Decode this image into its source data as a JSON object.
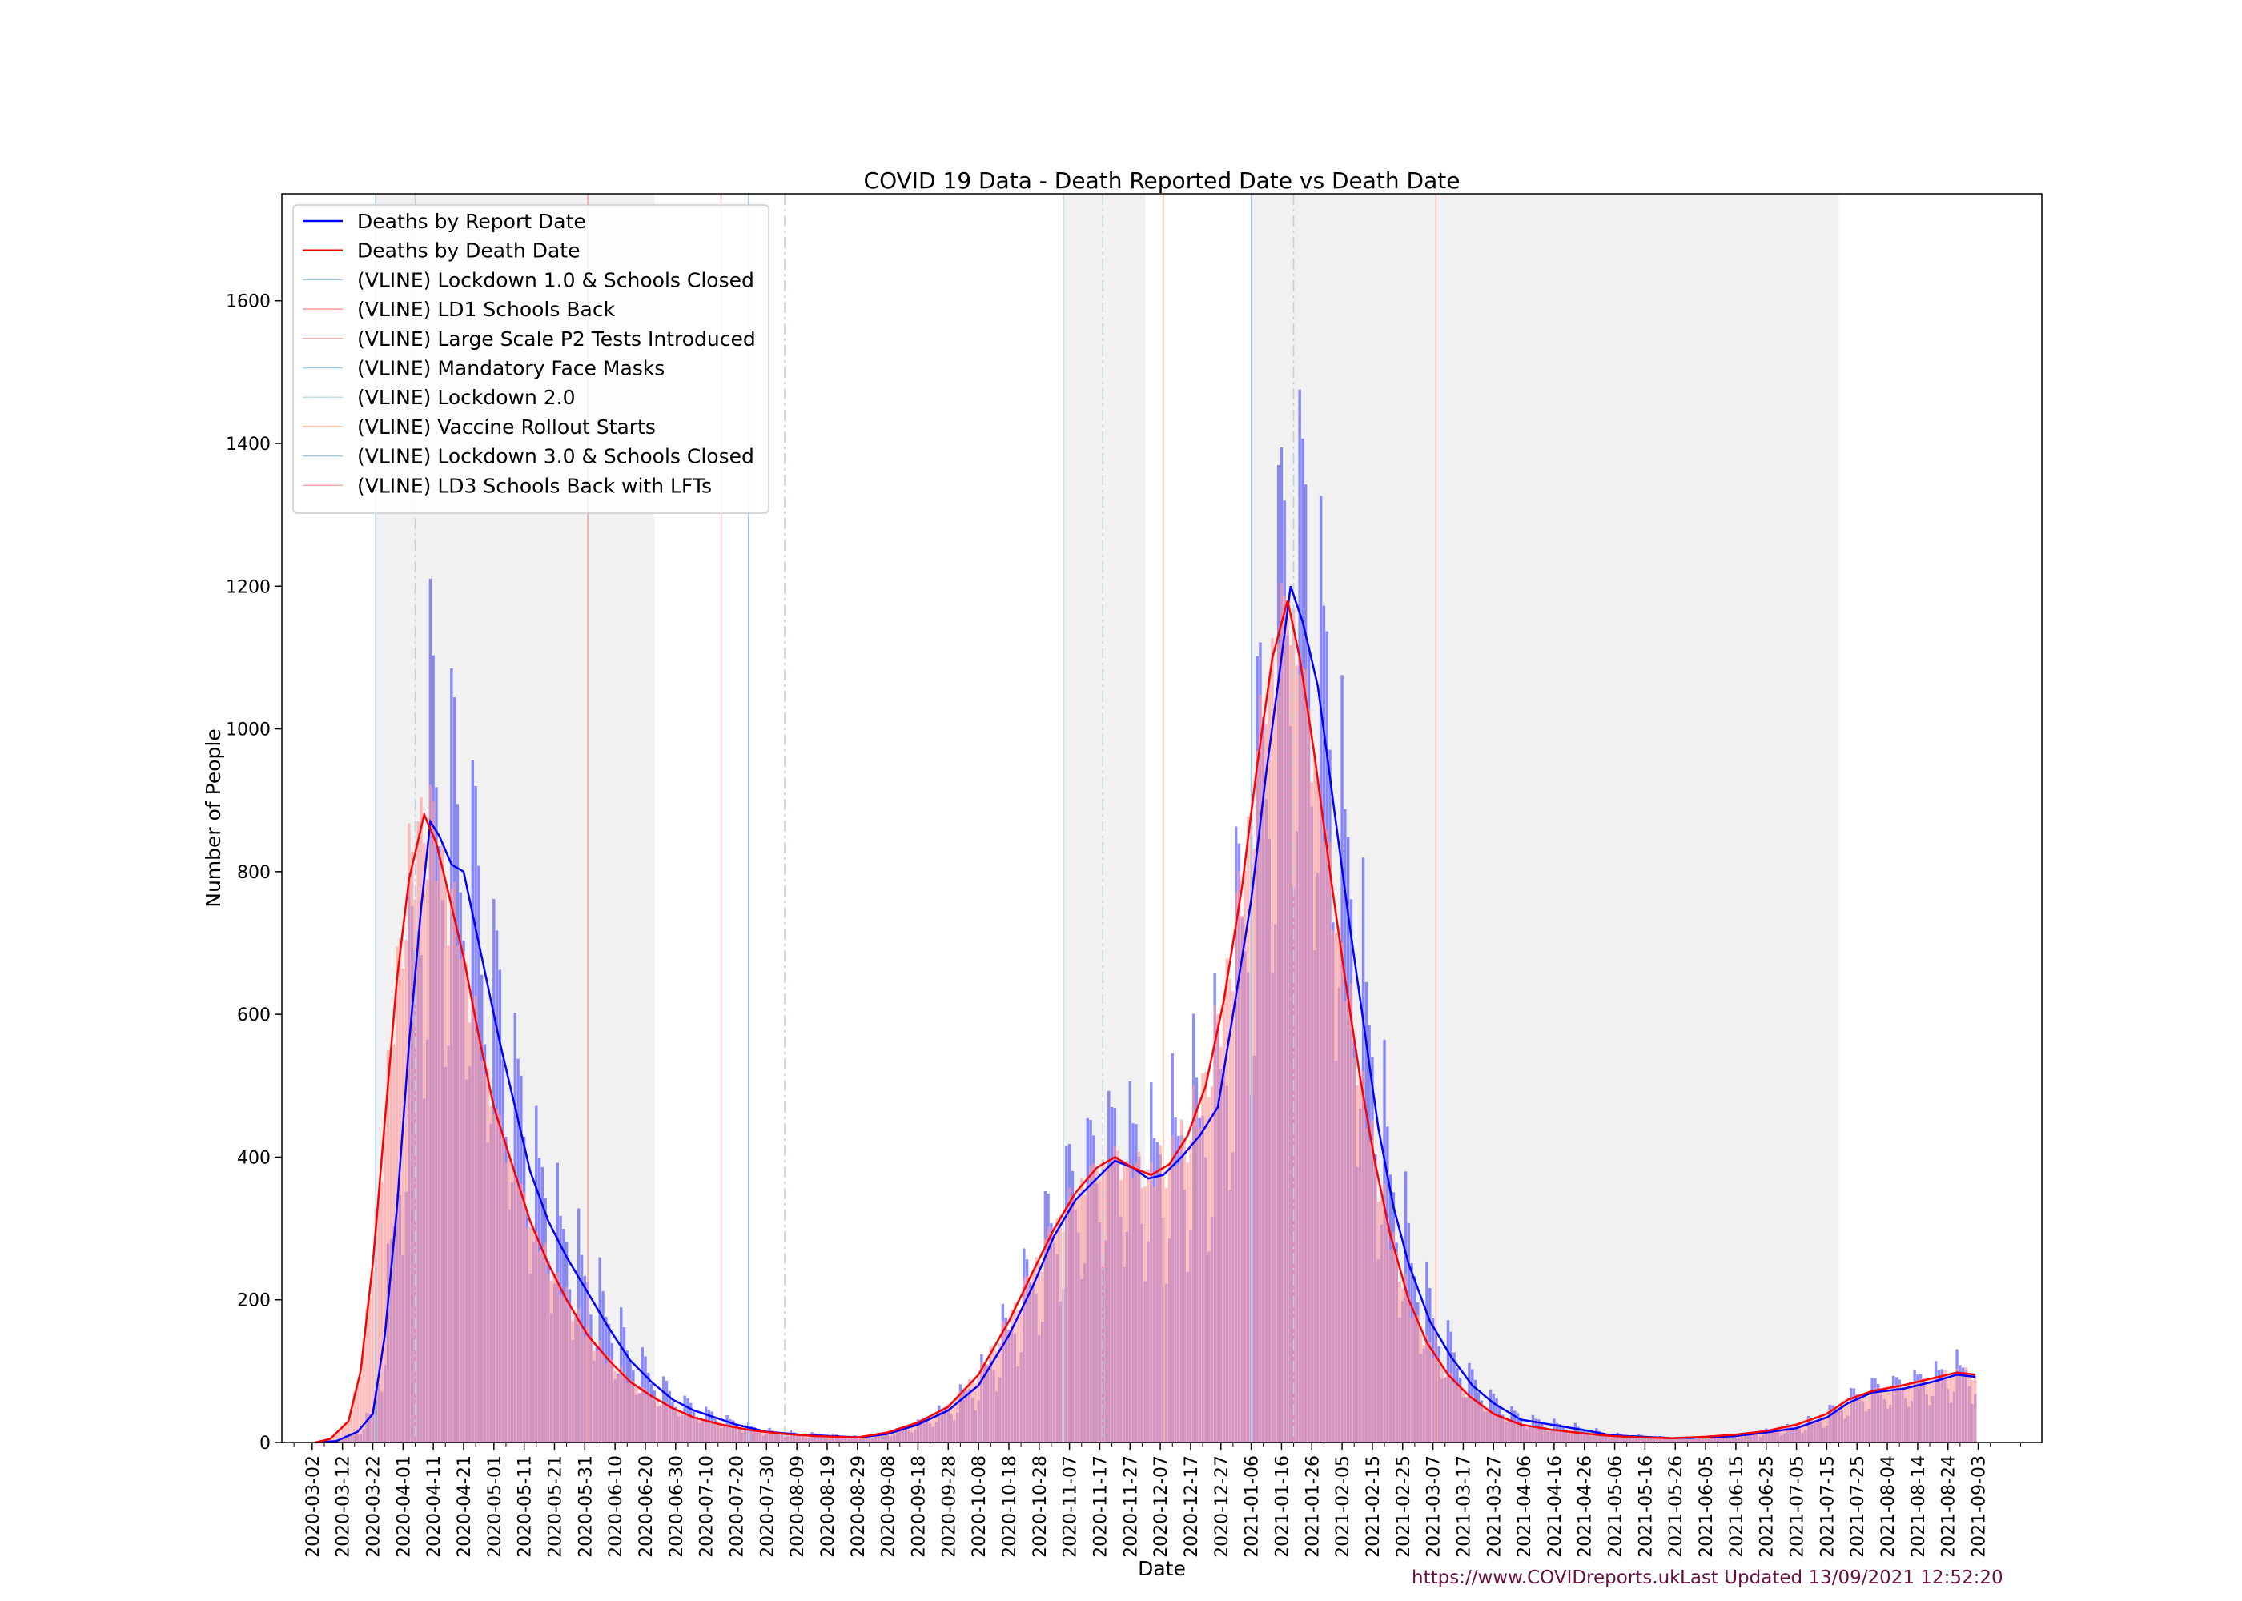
{
  "chart_data": {
    "type": "bar",
    "title": "COVID 19 Data - Death Reported Date vs Death Date",
    "xlabel": "Date",
    "ylabel": "Number of People",
    "x_range": [
      "2020-02-21",
      "2021-09-24"
    ],
    "ylim": [
      0,
      1750
    ],
    "y_ticks": [
      0,
      200,
      400,
      600,
      800,
      1000,
      1200,
      1400,
      1600
    ],
    "x_ticks": [
      "2020-03-02",
      "2020-03-12",
      "2020-03-22",
      "2020-04-01",
      "2020-04-11",
      "2020-04-21",
      "2020-05-01",
      "2020-05-11",
      "2020-05-21",
      "2020-05-31",
      "2020-06-10",
      "2020-06-20",
      "2020-06-30",
      "2020-07-10",
      "2020-07-20",
      "2020-07-30",
      "2020-08-09",
      "2020-08-19",
      "2020-08-29",
      "2020-09-08",
      "2020-09-18",
      "2020-09-28",
      "2020-10-08",
      "2020-10-18",
      "2020-10-28",
      "2020-11-07",
      "2020-11-17",
      "2020-11-27",
      "2020-12-07",
      "2020-12-17",
      "2020-12-27",
      "2021-01-06",
      "2021-01-16",
      "2021-01-26",
      "2021-02-05",
      "2021-02-15",
      "2021-02-25",
      "2021-03-07",
      "2021-03-17",
      "2021-03-27",
      "2021-04-06",
      "2021-04-16",
      "2021-04-26",
      "2021-05-06",
      "2021-05-16",
      "2021-05-26",
      "2021-06-05",
      "2021-06-15",
      "2021-06-25",
      "2021-07-05",
      "2021-07-15",
      "2021-07-25",
      "2021-08-04",
      "2021-08-14",
      "2021-08-24",
      "2021-09-03"
    ],
    "grid": false,
    "legend_position": "top-left",
    "shaded_periods": [
      {
        "start": "2020-03-23",
        "end": "2020-06-23"
      },
      {
        "start": "2020-11-05",
        "end": "2020-12-02"
      },
      {
        "start": "2021-01-06",
        "end": "2021-07-19"
      }
    ],
    "series": [
      {
        "name": "Deaths by Report Date",
        "color": "#0000ff",
        "anchors": [
          [
            "2020-03-03",
            0
          ],
          [
            "2020-03-10",
            2
          ],
          [
            "2020-03-17",
            15
          ],
          [
            "2020-03-22",
            40
          ],
          [
            "2020-03-26",
            150
          ],
          [
            "2020-03-30",
            330
          ],
          [
            "2020-04-03",
            560
          ],
          [
            "2020-04-07",
            750
          ],
          [
            "2020-04-10",
            870
          ],
          [
            "2020-04-13",
            850
          ],
          [
            "2020-04-17",
            810
          ],
          [
            "2020-04-21",
            800
          ],
          [
            "2020-04-25",
            720
          ],
          [
            "2020-04-29",
            640
          ],
          [
            "2020-05-03",
            560
          ],
          [
            "2020-05-08",
            470
          ],
          [
            "2020-05-13",
            380
          ],
          [
            "2020-05-19",
            310
          ],
          [
            "2020-05-25",
            260
          ],
          [
            "2020-06-01",
            210
          ],
          [
            "2020-06-08",
            160
          ],
          [
            "2020-06-15",
            115
          ],
          [
            "2020-06-22",
            85
          ],
          [
            "2020-06-29",
            60
          ],
          [
            "2020-07-06",
            45
          ],
          [
            "2020-07-13",
            35
          ],
          [
            "2020-07-20",
            25
          ],
          [
            "2020-07-30",
            15
          ],
          [
            "2020-08-10",
            11
          ],
          [
            "2020-08-20",
            9
          ],
          [
            "2020-08-30",
            7
          ],
          [
            "2020-09-08",
            12
          ],
          [
            "2020-09-18",
            25
          ],
          [
            "2020-09-28",
            45
          ],
          [
            "2020-10-08",
            80
          ],
          [
            "2020-10-18",
            150
          ],
          [
            "2020-10-26",
            220
          ],
          [
            "2020-11-02",
            290
          ],
          [
            "2020-11-09",
            340
          ],
          [
            "2020-11-16",
            370
          ],
          [
            "2020-11-22",
            395
          ],
          [
            "2020-11-28",
            385
          ],
          [
            "2020-12-03",
            370
          ],
          [
            "2020-12-08",
            375
          ],
          [
            "2020-12-14",
            400
          ],
          [
            "2020-12-20",
            430
          ],
          [
            "2020-12-26",
            470
          ],
          [
            "2020-12-31",
            600
          ],
          [
            "2021-01-06",
            760
          ],
          [
            "2021-01-11",
            940
          ],
          [
            "2021-01-16",
            1100
          ],
          [
            "2021-01-19",
            1200
          ],
          [
            "2021-01-23",
            1150
          ],
          [
            "2021-01-28",
            1060
          ],
          [
            "2021-02-02",
            900
          ],
          [
            "2021-02-07",
            740
          ],
          [
            "2021-02-12",
            590
          ],
          [
            "2021-02-17",
            440
          ],
          [
            "2021-02-22",
            330
          ],
          [
            "2021-02-27",
            250
          ],
          [
            "2021-03-06",
            170
          ],
          [
            "2021-03-13",
            120
          ],
          [
            "2021-03-20",
            80
          ],
          [
            "2021-03-27",
            55
          ],
          [
            "2021-04-05",
            32
          ],
          [
            "2021-04-15",
            25
          ],
          [
            "2021-04-25",
            18
          ],
          [
            "2021-05-05",
            10
          ],
          [
            "2021-05-15",
            8
          ],
          [
            "2021-05-25",
            6
          ],
          [
            "2021-06-05",
            7
          ],
          [
            "2021-06-15",
            9
          ],
          [
            "2021-06-25",
            14
          ],
          [
            "2021-07-05",
            20
          ],
          [
            "2021-07-15",
            35
          ],
          [
            "2021-07-22",
            55
          ],
          [
            "2021-07-30",
            70
          ],
          [
            "2021-08-09",
            75
          ],
          [
            "2021-08-19",
            85
          ],
          [
            "2021-08-27",
            95
          ],
          [
            "2021-09-02",
            92
          ]
        ]
      },
      {
        "name": "Deaths by Death Date",
        "color": "#ff0000",
        "anchors": [
          [
            "2020-03-03",
            0
          ],
          [
            "2020-03-08",
            5
          ],
          [
            "2020-03-14",
            30
          ],
          [
            "2020-03-18",
            100
          ],
          [
            "2020-03-22",
            250
          ],
          [
            "2020-03-26",
            450
          ],
          [
            "2020-03-30",
            650
          ],
          [
            "2020-04-03",
            790
          ],
          [
            "2020-04-08",
            880
          ],
          [
            "2020-04-12",
            840
          ],
          [
            "2020-04-16",
            770
          ],
          [
            "2020-04-21",
            680
          ],
          [
            "2020-04-26",
            570
          ],
          [
            "2020-05-01",
            470
          ],
          [
            "2020-05-07",
            390
          ],
          [
            "2020-05-13",
            310
          ],
          [
            "2020-05-19",
            250
          ],
          [
            "2020-05-25",
            200
          ],
          [
            "2020-06-01",
            150
          ],
          [
            "2020-06-08",
            115
          ],
          [
            "2020-06-15",
            85
          ],
          [
            "2020-06-22",
            65
          ],
          [
            "2020-06-29",
            48
          ],
          [
            "2020-07-06",
            35
          ],
          [
            "2020-07-15",
            25
          ],
          [
            "2020-07-25",
            17
          ],
          [
            "2020-08-05",
            12
          ],
          [
            "2020-08-15",
            9
          ],
          [
            "2020-08-29",
            7
          ],
          [
            "2020-09-08",
            14
          ],
          [
            "2020-09-18",
            28
          ],
          [
            "2020-09-28",
            50
          ],
          [
            "2020-10-08",
            95
          ],
          [
            "2020-10-18",
            170
          ],
          [
            "2020-10-26",
            240
          ],
          [
            "2020-11-02",
            300
          ],
          [
            "2020-11-09",
            350
          ],
          [
            "2020-11-16",
            385
          ],
          [
            "2020-11-22",
            400
          ],
          [
            "2020-11-28",
            385
          ],
          [
            "2020-12-04",
            375
          ],
          [
            "2020-12-10",
            390
          ],
          [
            "2020-12-16",
            430
          ],
          [
            "2020-12-22",
            500
          ],
          [
            "2020-12-28",
            620
          ],
          [
            "2021-01-03",
            780
          ],
          [
            "2021-01-08",
            950
          ],
          [
            "2021-01-13",
            1100
          ],
          [
            "2021-01-18",
            1180
          ],
          [
            "2021-01-22",
            1100
          ],
          [
            "2021-01-27",
            960
          ],
          [
            "2021-02-01",
            800
          ],
          [
            "2021-02-06",
            650
          ],
          [
            "2021-02-11",
            510
          ],
          [
            "2021-02-16",
            390
          ],
          [
            "2021-02-21",
            290
          ],
          [
            "2021-02-27",
            200
          ],
          [
            "2021-03-05",
            140
          ],
          [
            "2021-03-12",
            95
          ],
          [
            "2021-03-19",
            65
          ],
          [
            "2021-03-27",
            40
          ],
          [
            "2021-04-05",
            25
          ],
          [
            "2021-04-15",
            18
          ],
          [
            "2021-04-25",
            13
          ],
          [
            "2021-05-05",
            9
          ],
          [
            "2021-05-15",
            7
          ],
          [
            "2021-05-25",
            6
          ],
          [
            "2021-06-05",
            8
          ],
          [
            "2021-06-15",
            11
          ],
          [
            "2021-06-25",
            16
          ],
          [
            "2021-07-05",
            25
          ],
          [
            "2021-07-15",
            40
          ],
          [
            "2021-07-22",
            60
          ],
          [
            "2021-07-30",
            72
          ],
          [
            "2021-08-09",
            80
          ],
          [
            "2021-08-19",
            90
          ],
          [
            "2021-08-27",
            98
          ],
          [
            "2021-09-02",
            95
          ]
        ]
      }
    ],
    "bar_series": [
      {
        "name": "Deaths by Report Date (daily bars)",
        "color": "#3030ff",
        "based_on": "Deaths by Report Date"
      },
      {
        "name": "Deaths by Death Date (daily bars)",
        "color": "#ff9a9a",
        "based_on": "Deaths by Death Date"
      }
    ],
    "vlines": [
      {
        "name": "(VLINE) Lockdown 1.0 & Schools Closed",
        "date": "2020-03-23",
        "color": "#9ecae1"
      },
      {
        "name": "(VLINE) LD1 Schools Back",
        "date": "2020-06-01",
        "color": "#ff9999"
      },
      {
        "name": "(VLINE) Large Scale P2 Tests Introduced",
        "date": "2020-07-15",
        "color": "#ffaaaa"
      },
      {
        "name": "(VLINE) Mandatory Face Masks",
        "date": "2020-07-24",
        "color": "#99ccee"
      },
      {
        "name": "(VLINE) Lockdown 2.0",
        "date": "2020-11-05",
        "color": "#bbdde8"
      },
      {
        "name": "(VLINE) Vaccine Rollout Starts",
        "date": "2020-12-08",
        "color": "#ffbb99"
      },
      {
        "name": "(VLINE) Lockdown 3.0 & Schools Closed",
        "date": "2021-01-06",
        "color": "#99ccee"
      },
      {
        "name": "(VLINE) LD3 Schools Back with LFTs",
        "date": "2021-03-08",
        "color": "#ffaaaa"
      }
    ],
    "dashdot_lines": [
      "2020-04-05",
      "2020-08-05",
      "2020-11-18",
      "2021-01-20"
    ]
  },
  "footer": {
    "url": "https://www.COVIDreports.uk",
    "updated": "Last Updated 13/09/2021 12:52:20"
  }
}
